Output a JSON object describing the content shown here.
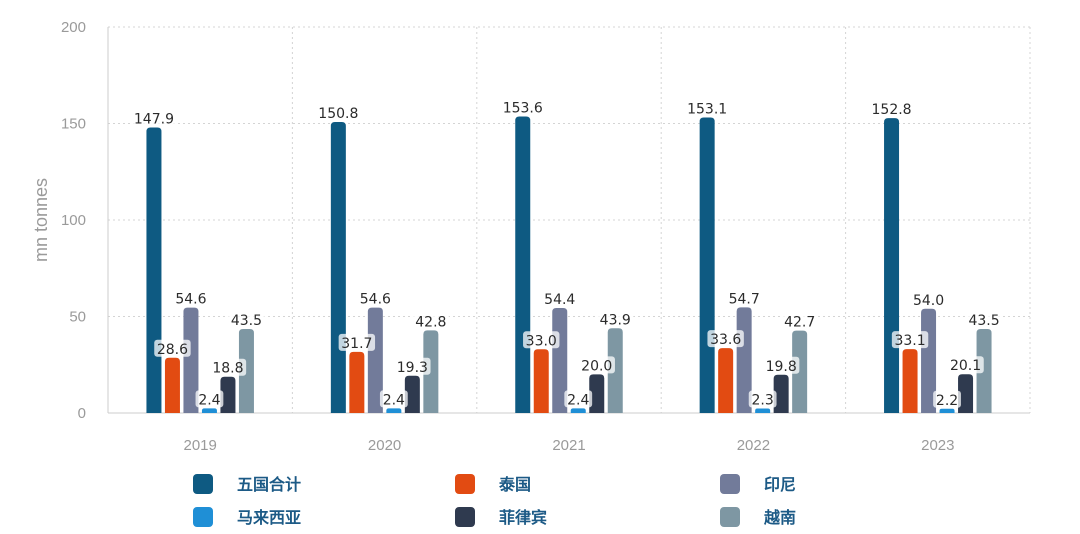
{
  "chart_data": {
    "type": "bar",
    "categories": [
      "2019",
      "2020",
      "2021",
      "2022",
      "2023"
    ],
    "ylabel": "mn tonnes",
    "xlabel": "",
    "ylim": [
      0,
      200
    ],
    "yticks": [
      "0",
      "50",
      "100",
      "150",
      "200"
    ],
    "grid": true,
    "legend_position": "bottom",
    "series": [
      {
        "name": "五国合计",
        "color": "#0e5a82",
        "values": [
          147.9,
          150.8,
          153.6,
          153.1,
          152.8
        ],
        "labels": [
          "147.9",
          "150.8",
          "153.6",
          "153.1",
          "152.8"
        ]
      },
      {
        "name": "泰国",
        "color": "#e24b12",
        "values": [
          28.6,
          31.7,
          33.0,
          33.6,
          33.1
        ],
        "labels": [
          "28.6",
          "31.7",
          "33.0",
          "33.6",
          "33.1"
        ]
      },
      {
        "name": "印尼",
        "color": "#727b9a",
        "values": [
          54.6,
          54.6,
          54.4,
          54.7,
          54.0
        ],
        "labels": [
          "54.6",
          "54.6",
          "54.4",
          "54.7",
          "54.0"
        ]
      },
      {
        "name": "马来西亚",
        "color": "#1f8fd6",
        "values": [
          2.4,
          2.4,
          2.4,
          2.3,
          2.2
        ],
        "labels": [
          "2.4",
          "2.4",
          "2.4",
          "2.3",
          "2.2"
        ]
      },
      {
        "name": "菲律宾",
        "color": "#2f3a4f",
        "values": [
          18.8,
          19.3,
          20.0,
          19.8,
          20.1
        ],
        "labels": [
          "18.8",
          "19.3",
          "20.0",
          "19.8",
          "20.1"
        ]
      },
      {
        "name": "越南",
        "color": "#7e97a3",
        "values": [
          43.5,
          42.8,
          43.9,
          42.7,
          43.5
        ],
        "labels": [
          "43.5",
          "42.8",
          "43.9",
          "42.7",
          "43.5"
        ]
      }
    ]
  }
}
